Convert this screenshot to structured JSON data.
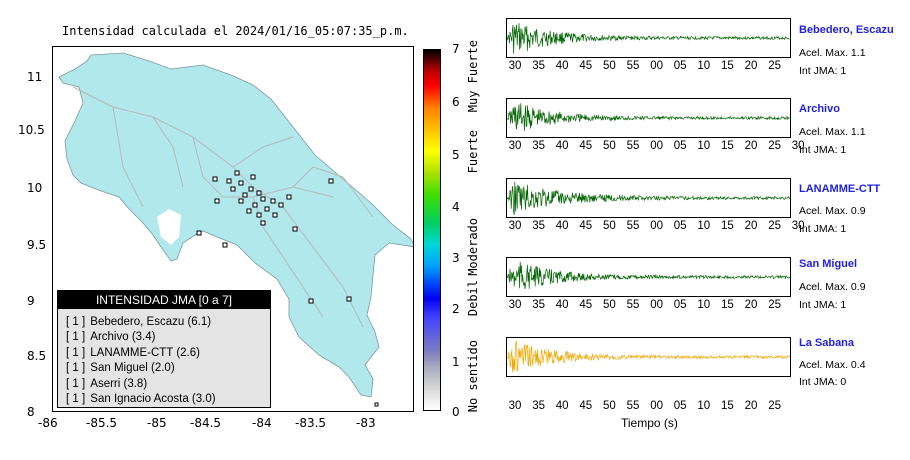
{
  "map": {
    "title": "Intensidad calculada el 2024/01/16_05:07:35_p.m.",
    "x_ticks": [
      "-86",
      "-85.5",
      "-85",
      "-84.5",
      "-84",
      "-83.5",
      "-83"
    ],
    "y_ticks": [
      "11",
      "10.5",
      "10",
      "9.5",
      "9",
      "8.5",
      "8"
    ],
    "colors": {
      "land": "#b0e8ec",
      "water": "#ffffff",
      "roads": "#b8b8b8",
      "station_fill": "#ffffff",
      "station_stroke": "#000000"
    }
  },
  "legend": {
    "header": "INTENSIDAD JMA [0 a 7]",
    "items": [
      {
        "code": "[ 1 ]",
        "label": "Bebedero, Escazu (6.1)"
      },
      {
        "code": "[ 1 ]",
        "label": "Archivo (3.4)"
      },
      {
        "code": "[ 1 ]",
        "label": "LANAMME-CTT (2.6)"
      },
      {
        "code": "[ 1 ]",
        "label": "San Miguel (2.0)"
      },
      {
        "code": "[ 1 ]",
        "label": "Aserri (3.8)"
      },
      {
        "code": "[ 1 ]",
        "label": "San Ignacio Acosta (3.0)"
      }
    ]
  },
  "colorbar": {
    "ticks": [
      "7",
      "6",
      "5",
      "4",
      "3",
      "2",
      "1",
      "0"
    ],
    "words": [
      "Muy Fuerte",
      "Fuerte",
      "Moderado",
      "Debil",
      "No sentido"
    ]
  },
  "stations": [
    {
      "name": "Bebedero, Escazu",
      "accel": "Acel. Max. 1.1",
      "jma": "Int JMA: 1",
      "color": "#006400",
      "ticks": [
        "30",
        "35",
        "40",
        "45",
        "50",
        "55",
        "00",
        "05",
        "10",
        "15",
        "20",
        "25"
      ]
    },
    {
      "name": "Archivo",
      "accel": "Acel. Max. 1.1",
      "jma": "Int JMA: 1",
      "color": "#006400",
      "ticks": [
        "30",
        "35",
        "40",
        "45",
        "50",
        "55",
        "00",
        "05",
        "10",
        "15",
        "20",
        "25",
        "30"
      ]
    },
    {
      "name": "LANAMME-CTT",
      "accel": "Acel. Max. 0.9",
      "jma": "Int JMA: 1",
      "color": "#006400",
      "ticks": [
        "30",
        "35",
        "40",
        "45",
        "50",
        "55",
        "00",
        "05",
        "10",
        "15",
        "20",
        "25",
        "30"
      ]
    },
    {
      "name": "San Miguel",
      "accel": "Acel. Max. 0.9",
      "jma": "Int JMA: 1",
      "color": "#006400",
      "ticks": [
        "30",
        "35",
        "40",
        "45",
        "50",
        "55",
        "00",
        "05",
        "10",
        "15",
        "20",
        "25"
      ]
    },
    {
      "name": "La Sabana",
      "accel": "Acel. Max. 0.4",
      "jma": "Int JMA: 0",
      "color": "#f0a800",
      "ticks": [
        "30",
        "35",
        "40",
        "45",
        "50",
        "55",
        "00",
        "05",
        "10",
        "15",
        "20",
        "25"
      ]
    }
  ],
  "time_axis_label": "Tiempo (s)"
}
